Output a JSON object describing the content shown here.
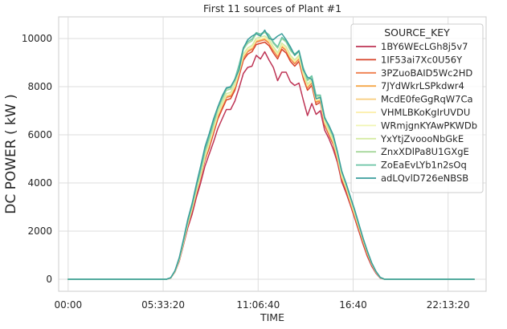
{
  "chart_data": {
    "type": "line",
    "title": "First 11 sources of Plant #1",
    "xlabel": "TIME",
    "ylabel": "DC POWER ( kW )",
    "x_unit": "seconds_since_midnight",
    "x_tick_labels": [
      "00:00",
      "05:33:20",
      "11:06:40",
      "16:40",
      "22:13:20"
    ],
    "x_tick_values": [
      0,
      20000,
      40000,
      60000,
      80000
    ],
    "x_range": [
      -2000,
      88000
    ],
    "y_ticks": [
      0,
      2000,
      4000,
      6000,
      8000,
      10000
    ],
    "y_range": [
      -500,
      10900
    ],
    "grid": true,
    "legend_title": "SOURCE_KEY",
    "legend_position": "top-right",
    "x": [
      0,
      900,
      1800,
      2700,
      3600,
      4500,
      5400,
      6300,
      7200,
      8100,
      9000,
      9900,
      10800,
      11700,
      12600,
      13500,
      14400,
      15300,
      16200,
      17100,
      18000,
      18900,
      19800,
      20700,
      21600,
      22500,
      23400,
      24300,
      25200,
      26100,
      27000,
      27900,
      28800,
      29700,
      30600,
      31500,
      32400,
      33300,
      34200,
      35100,
      36000,
      36900,
      37800,
      38700,
      39600,
      40500,
      41400,
      42300,
      43200,
      44100,
      45000,
      45900,
      46800,
      47700,
      48600,
      49500,
      50400,
      51300,
      52200,
      53100,
      54000,
      54900,
      55800,
      56700,
      57600,
      58500,
      59400,
      60300,
      61200,
      62100,
      63000,
      63900,
      64800,
      65700,
      66600,
      67500,
      68400,
      69300,
      70200,
      71100,
      72000,
      72900,
      73800,
      74700,
      75600,
      76500,
      77400,
      78300,
      79200,
      80100,
      81000,
      81900,
      82800,
      83700,
      84600,
      85500
    ],
    "series": [
      {
        "name": "1BY6WEcLGh8j5v7",
        "color": "#be3455",
        "values": [
          0,
          0,
          0,
          0,
          0,
          0,
          0,
          0,
          0,
          0,
          0,
          0,
          0,
          0,
          0,
          0,
          0,
          0,
          0,
          0,
          0,
          0,
          0,
          0,
          50,
          300,
          750,
          1450,
          2150,
          2700,
          3400,
          4000,
          4700,
          5200,
          5700,
          6250,
          6650,
          7050,
          7050,
          7400,
          7950,
          8550,
          8800,
          8850,
          9300,
          9150,
          9450,
          9100,
          8800,
          8250,
          8600,
          8600,
          8200,
          8050,
          8150,
          7450,
          6800,
          7300,
          6850,
          7000,
          6200,
          5850,
          5400,
          4850,
          4050,
          3600,
          3100,
          2550,
          2000,
          1450,
          950,
          550,
          250,
          50,
          0,
          0,
          0,
          0,
          0,
          0,
          0,
          0,
          0,
          0,
          0,
          0,
          0,
          0,
          0,
          0,
          0,
          0,
          0,
          0,
          0,
          0
        ]
      },
      {
        "name": "1IF53ai7Xc0U56Y",
        "color": "#d7432a",
        "values": [
          0,
          0,
          0,
          0,
          0,
          0,
          0,
          0,
          0,
          0,
          0,
          0,
          0,
          0,
          0,
          0,
          0,
          0,
          0,
          0,
          0,
          0,
          0,
          0,
          55,
          320,
          790,
          1500,
          2250,
          2850,
          3550,
          4200,
          4950,
          5450,
          6050,
          6650,
          7050,
          7450,
          7500,
          7850,
          8450,
          9100,
          9350,
          9450,
          9750,
          9800,
          9850,
          9700,
          9400,
          9150,
          9550,
          9400,
          9050,
          8850,
          9050,
          8350,
          7850,
          8050,
          7250,
          7350,
          6400,
          6000,
          5600,
          4950,
          4150,
          3700,
          3150,
          2600,
          2050,
          1500,
          1000,
          600,
          280,
          60,
          0,
          0,
          0,
          0,
          0,
          0,
          0,
          0,
          0,
          0,
          0,
          0,
          0,
          0,
          0,
          0,
          0,
          0,
          0,
          0,
          0,
          0
        ]
      },
      {
        "name": "3PZuoBAID5Wc2HD",
        "color": "#ef7e4d",
        "values": [
          0,
          0,
          0,
          0,
          0,
          0,
          0,
          0,
          0,
          0,
          0,
          0,
          0,
          0,
          0,
          0,
          0,
          0,
          0,
          0,
          0,
          0,
          0,
          0,
          55,
          320,
          800,
          1520,
          2280,
          2900,
          3600,
          4250,
          5000,
          5550,
          6150,
          6750,
          7150,
          7550,
          7600,
          7950,
          8550,
          9200,
          9450,
          9550,
          9850,
          9900,
          9950,
          9800,
          9500,
          9250,
          9650,
          9500,
          9150,
          8950,
          9150,
          8450,
          7950,
          8150,
          7350,
          7400,
          6450,
          6050,
          5650,
          5000,
          4200,
          3750,
          3200,
          2650,
          2100,
          1550,
          1050,
          620,
          290,
          65,
          0,
          0,
          0,
          0,
          0,
          0,
          0,
          0,
          0,
          0,
          0,
          0,
          0,
          0,
          0,
          0,
          0,
          0,
          0,
          0,
          0,
          0
        ]
      },
      {
        "name": "7JYdWkrLSPkdwr4",
        "color": "#f5a748",
        "values": [
          0,
          0,
          0,
          0,
          0,
          0,
          0,
          0,
          0,
          0,
          0,
          0,
          0,
          0,
          0,
          0,
          0,
          0,
          0,
          0,
          0,
          0,
          0,
          0,
          55,
          325,
          810,
          1530,
          2290,
          2920,
          3620,
          4280,
          5050,
          5600,
          6200,
          6800,
          7200,
          7600,
          7650,
          8000,
          8600,
          9250,
          9500,
          9600,
          9900,
          9950,
          10000,
          9850,
          9550,
          9300,
          9700,
          9550,
          9200,
          9000,
          9200,
          8500,
          8000,
          8200,
          7400,
          7450,
          6500,
          6100,
          5700,
          5050,
          4250,
          3800,
          3250,
          2700,
          2150,
          1600,
          1080,
          640,
          300,
          70,
          0,
          0,
          0,
          0,
          0,
          0,
          0,
          0,
          0,
          0,
          0,
          0,
          0,
          0,
          0,
          0,
          0,
          0,
          0,
          0,
          0,
          0
        ]
      },
      {
        "name": "McdE0feGgRqW7Ca",
        "color": "#f8cd7d",
        "values": [
          0,
          0,
          0,
          0,
          0,
          0,
          0,
          0,
          0,
          0,
          0,
          0,
          0,
          0,
          0,
          0,
          0,
          0,
          0,
          0,
          0,
          0,
          0,
          0,
          55,
          325,
          815,
          1540,
          2300,
          2930,
          3640,
          4300,
          5080,
          5630,
          6230,
          6830,
          7230,
          7630,
          7680,
          8030,
          8630,
          9280,
          9530,
          9630,
          9930,
          9980,
          10030,
          9880,
          9580,
          9330,
          9730,
          9580,
          9230,
          9030,
          9230,
          8530,
          8030,
          8230,
          7430,
          7480,
          6530,
          6130,
          5730,
          5080,
          4280,
          3830,
          3280,
          2730,
          2180,
          1620,
          1100,
          650,
          305,
          72,
          0,
          0,
          0,
          0,
          0,
          0,
          0,
          0,
          0,
          0,
          0,
          0,
          0,
          0,
          0,
          0,
          0,
          0,
          0,
          0,
          0,
          0
        ]
      },
      {
        "name": "VHMLBKoKgIrUVDU",
        "color": "#fbeea7",
        "values": [
          0,
          0,
          0,
          0,
          0,
          0,
          0,
          0,
          0,
          0,
          0,
          0,
          0,
          0,
          0,
          0,
          0,
          0,
          0,
          0,
          0,
          0,
          0,
          0,
          55,
          325,
          815,
          1540,
          2300,
          2930,
          3640,
          4300,
          5080,
          5630,
          6230,
          6830,
          7230,
          7630,
          7680,
          8030,
          8630,
          9280,
          9530,
          9630,
          9930,
          9980,
          10030,
          9880,
          9580,
          9330,
          9730,
          9580,
          9230,
          9030,
          9230,
          8530,
          8030,
          8230,
          7430,
          7480,
          6530,
          6130,
          5730,
          5080,
          4280,
          3830,
          3280,
          2730,
          2180,
          1620,
          1100,
          650,
          305,
          72,
          0,
          0,
          0,
          0,
          0,
          0,
          0,
          0,
          0,
          0,
          0,
          0,
          0,
          0,
          0,
          0,
          0,
          0,
          0,
          0,
          0,
          0
        ]
      },
      {
        "name": "WRmjgnKYAwPKWDb",
        "color": "#f0f5b3",
        "values": [
          0,
          0,
          0,
          0,
          0,
          0,
          0,
          0,
          0,
          0,
          0,
          0,
          0,
          0,
          0,
          0,
          0,
          0,
          0,
          0,
          0,
          0,
          0,
          0,
          58,
          335,
          830,
          1560,
          2330,
          2970,
          3690,
          4360,
          5150,
          5710,
          6310,
          6910,
          7310,
          7710,
          7760,
          8110,
          8710,
          9360,
          9610,
          9710,
          10010,
          10060,
          10110,
          9960,
          9660,
          9410,
          9810,
          9660,
          9310,
          9110,
          9310,
          8610,
          8110,
          8310,
          7510,
          7560,
          6610,
          6210,
          5810,
          5150,
          4350,
          3890,
          3330,
          2770,
          2210,
          1640,
          1120,
          660,
          310,
          74,
          0,
          0,
          0,
          0,
          0,
          0,
          0,
          0,
          0,
          0,
          0,
          0,
          0,
          0,
          0,
          0,
          0,
          0,
          0,
          0,
          0,
          0
        ]
      },
      {
        "name": "YxYtjZvoooNbGkE",
        "color": "#d5eba4",
        "values": [
          0,
          0,
          0,
          0,
          0,
          0,
          0,
          0,
          0,
          0,
          0,
          0,
          0,
          0,
          0,
          0,
          0,
          0,
          0,
          0,
          0,
          0,
          0,
          0,
          58,
          335,
          830,
          1560,
          2330,
          2970,
          3690,
          4360,
          5150,
          5710,
          6310,
          6910,
          7310,
          7710,
          7760,
          8110,
          8710,
          9360,
          9610,
          9710,
          10010,
          10060,
          10110,
          9960,
          9660,
          9410,
          9810,
          9660,
          9310,
          9110,
          9310,
          8610,
          8110,
          8310,
          7510,
          7560,
          6610,
          6210,
          5810,
          5150,
          4350,
          3890,
          3330,
          2770,
          2210,
          1640,
          1120,
          660,
          310,
          74,
          0,
          0,
          0,
          0,
          0,
          0,
          0,
          0,
          0,
          0,
          0,
          0,
          0,
          0,
          0,
          0,
          0,
          0,
          0,
          0,
          0,
          0
        ]
      },
      {
        "name": "ZnxXDlPa8U1GXgE",
        "color": "#a5d79b",
        "values": [
          0,
          0,
          0,
          0,
          0,
          0,
          0,
          0,
          0,
          0,
          0,
          0,
          0,
          0,
          0,
          0,
          0,
          0,
          0,
          0,
          0,
          0,
          0,
          0,
          60,
          345,
          860,
          1600,
          2400,
          3050,
          3800,
          4500,
          5300,
          5850,
          6450,
          7050,
          7450,
          7850,
          7900,
          8250,
          8850,
          9550,
          9800,
          9900,
          10200,
          10150,
          10250,
          10100,
          9800,
          9600,
          10000,
          9850,
          9500,
          9300,
          9450,
          8750,
          8250,
          8400,
          7600,
          7600,
          6700,
          6300,
          5900,
          5250,
          4450,
          3950,
          3400,
          2850,
          2250,
          1680,
          1150,
          680,
          320,
          76,
          0,
          0,
          0,
          0,
          0,
          0,
          0,
          0,
          0,
          0,
          0,
          0,
          0,
          0,
          0,
          0,
          0,
          0,
          0,
          0,
          0,
          0
        ]
      },
      {
        "name": "ZoEaEvLYb1n2sOq",
        "color": "#6bc4a6",
        "values": [
          0,
          0,
          0,
          0,
          0,
          0,
          0,
          0,
          0,
          0,
          0,
          0,
          0,
          0,
          0,
          0,
          0,
          0,
          0,
          0,
          0,
          0,
          0,
          0,
          62,
          350,
          870,
          1620,
          2430,
          3090,
          3850,
          4560,
          5360,
          5920,
          6520,
          7120,
          7520,
          7920,
          7970,
          8320,
          8920,
          9620,
          9870,
          9970,
          10250,
          10180,
          10300,
          10150,
          9850,
          9650,
          10050,
          9900,
          9550,
          9350,
          9500,
          8800,
          8300,
          8450,
          7650,
          7650,
          6750,
          6350,
          5950,
          5280,
          4480,
          3980,
          3430,
          2880,
          2280,
          1700,
          1160,
          690,
          325,
          78,
          0,
          0,
          0,
          0,
          0,
          0,
          0,
          0,
          0,
          0,
          0,
          0,
          0,
          0,
          0,
          0,
          0,
          0,
          0,
          0,
          0,
          0
        ]
      },
      {
        "name": "adLQvlD726eNBSB",
        "color": "#3a9d9b",
        "values": [
          0,
          0,
          0,
          0,
          0,
          0,
          0,
          0,
          0,
          0,
          0,
          0,
          0,
          0,
          0,
          0,
          0,
          0,
          0,
          0,
          0,
          0,
          0,
          0,
          65,
          360,
          900,
          1680,
          2500,
          3150,
          3950,
          4700,
          5500,
          6050,
          6650,
          7150,
          7600,
          7950,
          8000,
          8300,
          8700,
          9600,
          9950,
          10100,
          10200,
          10100,
          10350,
          10000,
          9950,
          10100,
          10200,
          9950,
          9650,
          9300,
          9500,
          8700,
          8400,
          8300,
          7500,
          7550,
          6700,
          6400,
          6000,
          5300,
          4500,
          4000,
          3450,
          2900,
          2300,
          1700,
          1170,
          690,
          330,
          80,
          0,
          0,
          0,
          0,
          0,
          0,
          0,
          0,
          0,
          0,
          0,
          0,
          0,
          0,
          0,
          0,
          0,
          0,
          0,
          0,
          0,
          0
        ]
      }
    ]
  }
}
